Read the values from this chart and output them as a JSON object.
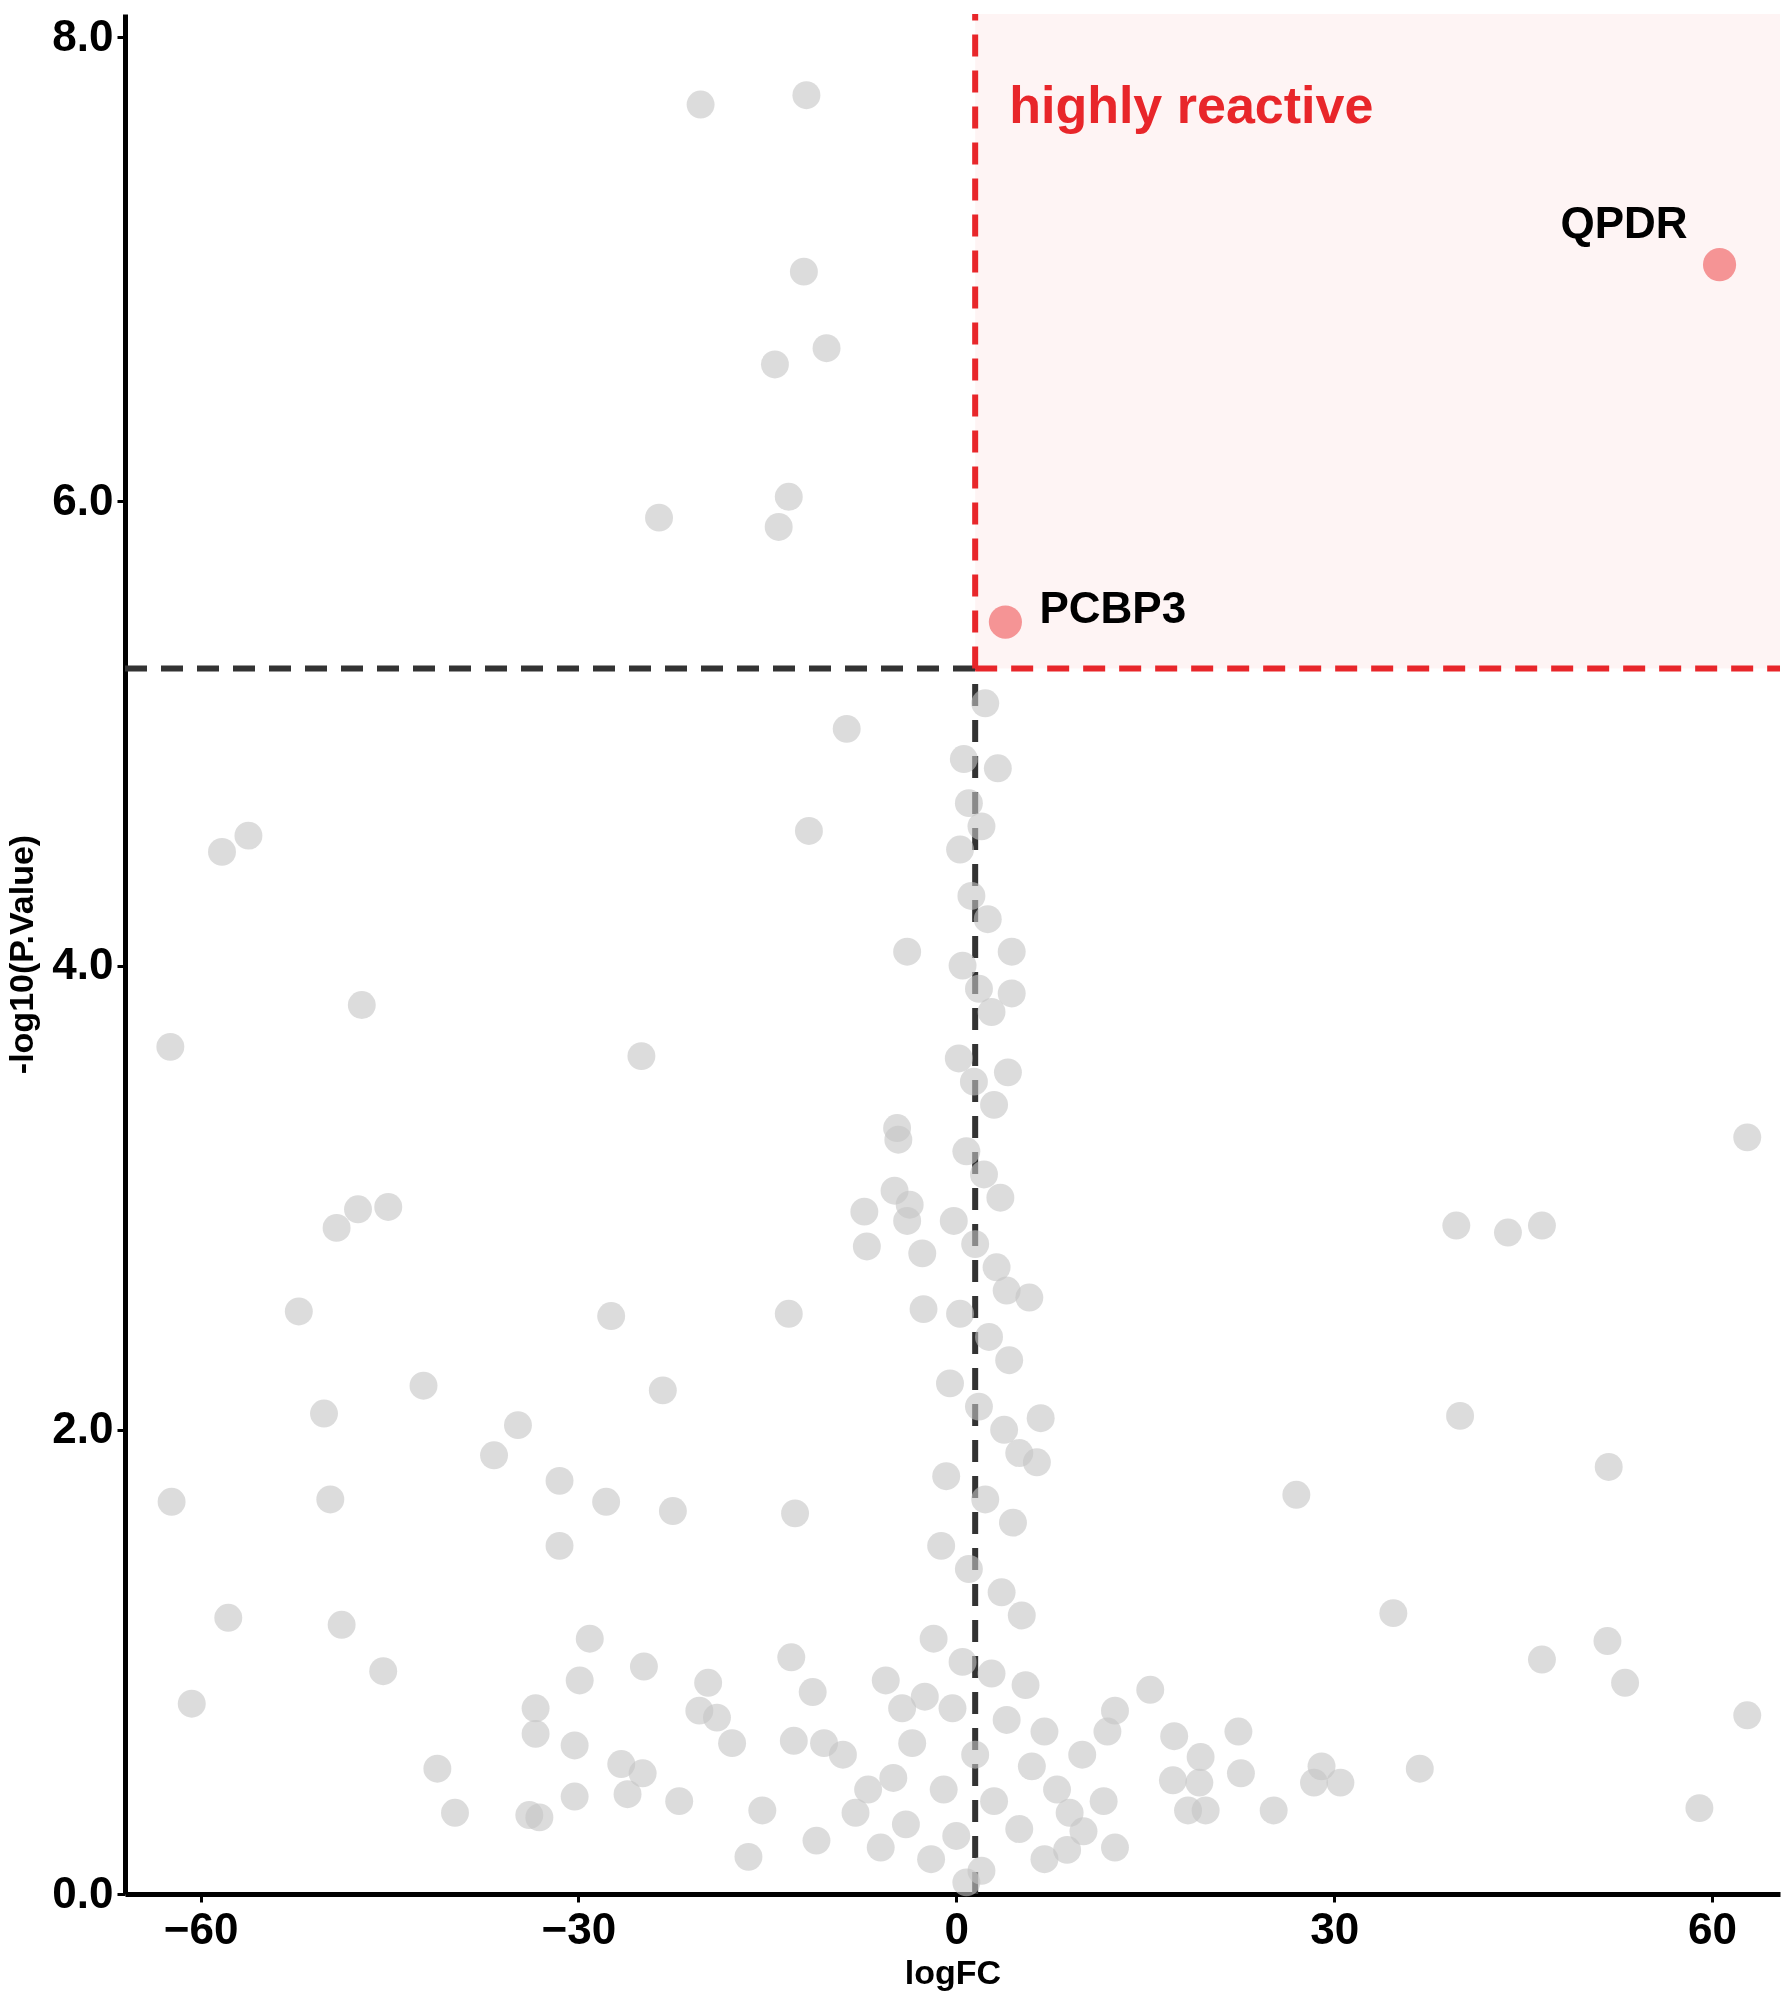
{
  "chart_data": {
    "type": "scatter",
    "xlabel": "logFC",
    "ylabel": "-log10(P.Value)",
    "xlim": [
      -66,
      65.4
    ],
    "ylim": [
      0,
      8.1
    ],
    "xticks": [
      -60,
      -30,
      0,
      30,
      60
    ],
    "yticks": [
      {
        "value": 0,
        "label": "0.0"
      },
      {
        "value": 2,
        "label": "2.0"
      },
      {
        "value": 4,
        "label": "4.0"
      },
      {
        "value": 6,
        "label": "6.0"
      },
      {
        "value": 8,
        "label": "8.0"
      }
    ],
    "grid": false,
    "legend": false,
    "marker": "circle",
    "series": [
      {
        "color": "#c4c4c4",
        "x": [
          -20.3,
          -11.9,
          -12.1,
          -10.3,
          -14.4,
          -13.3,
          -14.1,
          -23.6,
          -8.7,
          -11.7,
          -56.2,
          -58.3,
          -3.9,
          -47.2,
          -62.4,
          -25.0,
          62.8,
          -4.7,
          -4.6,
          -4.9,
          -3.7,
          -7.3,
          -7.1,
          -3.9,
          -2.7,
          -45.1,
          -47.5,
          -49.2,
          39.7,
          43.8,
          46.5,
          -52.2,
          -27.4,
          -13.3,
          -2.6,
          -23.3,
          -42.3,
          -50.2,
          -34.8,
          40.0,
          -36.7,
          51.8,
          -62.3,
          -49.7,
          -31.5,
          -27.8,
          -22.5,
          -12.8,
          27.0,
          -31.5,
          -57.8,
          -48.8,
          34.7,
          51.7,
          46.5,
          -29.1,
          -45.5,
          -24.8,
          -29.9,
          -13.1,
          53.1,
          -19.7,
          -11.4,
          -60.7,
          62.8,
          -33.4,
          -33.4,
          -30.3,
          -20.4,
          -19.0,
          -12.9,
          -17.8,
          -41.2,
          -26.6,
          -24.9,
          -26.1,
          -30.3,
          -22.0,
          -39.8,
          -33.9,
          -33.1,
          -16.5,
          -15.4,
          -11.1,
          -5.6,
          -4.3,
          17.3,
          19.4,
          22.4,
          22.6,
          17.2,
          19.3,
          18.4,
          19.8,
          25.2,
          29.0,
          28.4,
          30.5,
          36.8,
          59.0,
          15.4,
          12.6,
          12.6,
          11.7,
          10.1,
          8.8,
          6.7,
          6.4,
          5.8,
          4.4,
          4.4,
          4.1,
          3.3,
          2.3,
          0.6,
          1.0,
          0.3,
          2.0,
          1.2,
          2.5,
          0.5,
          1.8,
          2.8,
          0.2,
          1.4,
          3.0,
          0.8,
          2.2,
          3.5,
          -0.2,
          1.5,
          3.2,
          4.0,
          0.3,
          2.6,
          4.2,
          -0.5,
          1.8,
          3.8,
          5.0,
          -0.8,
          2.3,
          4.5,
          -1.2,
          1.0,
          3.6,
          5.2,
          -1.8,
          0.5,
          2.8,
          5.5,
          -2.5,
          -0.3,
          4.0,
          7.0,
          -3.5,
          1.5,
          6.0,
          -5.0,
          -1.0,
          3.0,
          8.0,
          -7.0,
          -4.0,
          0.0,
          5.0,
          -2.0,
          2.0,
          -6.0,
          7.0,
          0.8,
          -9.0,
          -10.5,
          10.0,
          12.0,
          -8.0,
          9.0
        ],
        "values": [
          7.71,
          7.75,
          6.99,
          6.66,
          6.59,
          6.02,
          5.89,
          5.93,
          5.02,
          4.58,
          4.56,
          4.49,
          4.06,
          3.83,
          3.65,
          3.61,
          3.26,
          3.3,
          3.25,
          3.03,
          2.97,
          2.94,
          2.79,
          2.9,
          2.76,
          2.96,
          2.95,
          2.87,
          2.88,
          2.85,
          2.88,
          2.51,
          2.49,
          2.5,
          2.52,
          2.17,
          2.19,
          2.07,
          2.02,
          2.06,
          1.89,
          1.84,
          1.69,
          1.7,
          1.78,
          1.69,
          1.65,
          1.64,
          1.72,
          1.5,
          1.19,
          1.16,
          1.21,
          1.09,
          1.01,
          1.1,
          0.96,
          0.98,
          0.92,
          1.02,
          0.91,
          0.91,
          0.87,
          0.82,
          0.77,
          0.8,
          0.69,
          0.64,
          0.79,
          0.76,
          0.66,
          0.65,
          0.54,
          0.56,
          0.52,
          0.43,
          0.42,
          0.4,
          0.35,
          0.34,
          0.33,
          0.16,
          0.36,
          0.23,
          0.92,
          0.8,
          0.68,
          0.59,
          0.7,
          0.52,
          0.49,
          0.48,
          0.36,
          0.36,
          0.36,
          0.55,
          0.48,
          0.48,
          0.54,
          0.37,
          0.88,
          0.79,
          0.2,
          0.4,
          0.27,
          0.19,
          2.05,
          1.86,
          2.57,
          4.06,
          3.88,
          3.54,
          4.85,
          5.13,
          4.89,
          4.7,
          4.5,
          4.6,
          4.3,
          4.2,
          4.0,
          3.9,
          3.8,
          3.6,
          3.5,
          3.4,
          3.2,
          3.1,
          3.0,
          2.9,
          2.8,
          2.7,
          2.6,
          2.5,
          2.4,
          2.3,
          2.2,
          2.1,
          2.0,
          1.9,
          1.8,
          1.7,
          1.6,
          1.5,
          1.4,
          1.3,
          1.2,
          1.1,
          1.0,
          0.95,
          0.9,
          0.85,
          0.8,
          0.75,
          0.7,
          0.65,
          0.6,
          0.55,
          0.5,
          0.45,
          0.4,
          0.45,
          0.45,
          0.3,
          0.25,
          0.28,
          0.15,
          0.1,
          0.2,
          0.15,
          0.05,
          0.6,
          0.65,
          0.6,
          0.7,
          0.35,
          0.35
        ]
      },
      {
        "color": "#f4898b",
        "x": [
          60.6,
          3.9
        ],
        "values": [
          7.02,
          5.48
        ]
      }
    ],
    "ref_lines": [
      {
        "axis": "y",
        "value": 5.28,
        "color": "#333333",
        "line_style": "dashed"
      },
      {
        "axis": "x",
        "value": 1.5,
        "color": "#333333",
        "line_style": "dashed"
      },
      {
        "axis": "y",
        "value": 5.28,
        "color": "#e8262a",
        "line_style": "dashed"
      },
      {
        "axis": "x",
        "value": 1.5,
        "color": "#e8262a",
        "line_style": "dashed"
      }
    ],
    "bands": [
      {
        "axis": "x",
        "from": 1.5,
        "to": 65.4,
        "label": "highly reactive",
        "color": "#e8262a"
      }
    ],
    "annotations": [
      {
        "text": "QPDR",
        "x": 60.6,
        "y": 7.02
      },
      {
        "text": "PCBP3",
        "x": 3.9,
        "y": 5.48
      }
    ]
  }
}
